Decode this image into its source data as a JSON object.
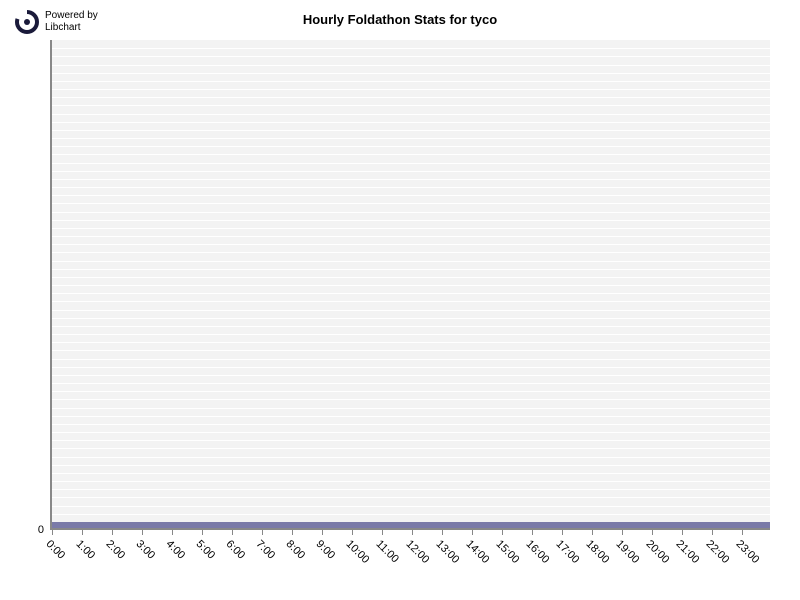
{
  "logo": {
    "powered_by": "Powered by",
    "libchart": "Libchart",
    "icon_color": "#1a1a3a"
  },
  "chart": {
    "type": "bar",
    "title": "Hourly Foldathon Stats for tyco",
    "title_fontsize": 13,
    "background_color": "#ffffff",
    "plot_background": "#f3f3f3",
    "gridline_color": "#ffffff",
    "gridline_count": 60,
    "axis_color": "#888888",
    "baseline_bar_color": "#7a7aa8",
    "baseline_bar_height": 6,
    "x_labels": [
      "0:00",
      "1:00",
      "2:00",
      "3:00",
      "4:00",
      "5:00",
      "6:00",
      "7:00",
      "8:00",
      "9:00",
      "10:00",
      "11:00",
      "12:00",
      "13:00",
      "14:00",
      "15:00",
      "16:00",
      "17:00",
      "18:00",
      "19:00",
      "20:00",
      "21:00",
      "22:00",
      "23:00"
    ],
    "x_label_fontsize": 11,
    "x_label_rotation": 45,
    "y_ticks": [
      0
    ],
    "y_label_fontsize": 11,
    "values": [
      0,
      0,
      0,
      0,
      0,
      0,
      0,
      0,
      0,
      0,
      0,
      0,
      0,
      0,
      0,
      0,
      0,
      0,
      0,
      0,
      0,
      0,
      0,
      0
    ]
  }
}
